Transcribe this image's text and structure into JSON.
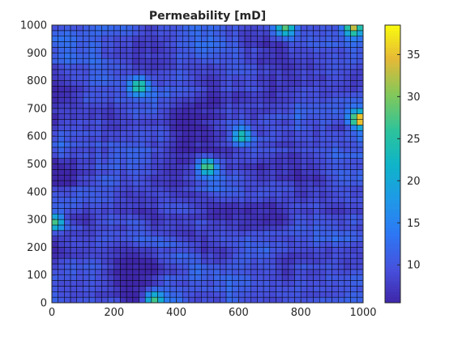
{
  "chart_data": {
    "type": "heatmap",
    "title": "Permeability [mD]",
    "xlabel": "",
    "ylabel": "",
    "xlim": [
      0,
      1000
    ],
    "ylim": [
      0,
      1000
    ],
    "x_ticks": [
      "0",
      "200",
      "400",
      "600",
      "800",
      "1000"
    ],
    "y_ticks": [
      "0",
      "100",
      "200",
      "300",
      "400",
      "500",
      "600",
      "700",
      "800",
      "900",
      "1000"
    ],
    "grid_size": [
      50,
      50
    ],
    "cell_edges": "black",
    "colormap": "parula",
    "colorbar": {
      "ticks": [
        "10",
        "15",
        "20",
        "25",
        "30",
        "35"
      ],
      "clim": [
        5.5,
        38.5
      ]
    },
    "value_range": [
      5.5,
      38.5
    ],
    "hotspots": [
      {
        "x": 990,
        "y": 660,
        "value": 38
      },
      {
        "x": 970,
        "y": 990,
        "value": 33
      },
      {
        "x": 750,
        "y": 990,
        "value": 28
      },
      {
        "x": 500,
        "y": 490,
        "value": 29
      },
      {
        "x": 280,
        "y": 780,
        "value": 28
      },
      {
        "x": 330,
        "y": 10,
        "value": 27
      },
      {
        "x": 10,
        "y": 290,
        "value": 27
      },
      {
        "x": 610,
        "y": 600,
        "value": 25
      }
    ]
  }
}
